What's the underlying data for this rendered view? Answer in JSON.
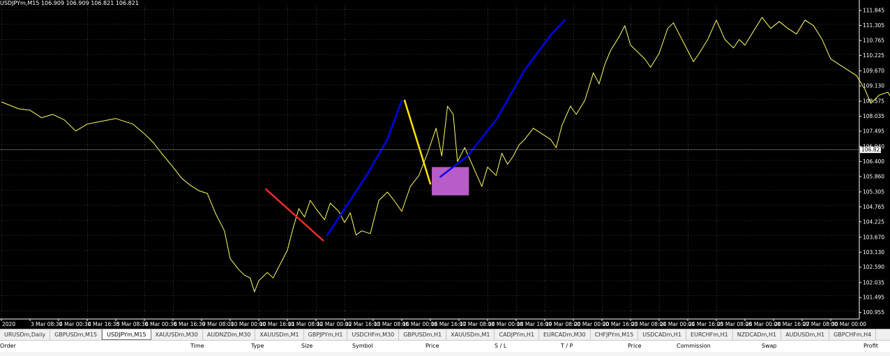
{
  "chart_data": {
    "type": "line",
    "title": "USDJPYm,M15  106.909 106.909 106.821 106.821",
    "symbol": "USDJPYm,M15",
    "ylim": [
      100.72,
      112.1
    ],
    "y_ticks": [
      111.845,
      111.305,
      110.765,
      110.225,
      109.67,
      109.13,
      108.575,
      108.035,
      107.495,
      106.94,
      106.4,
      105.86,
      105.305,
      104.765,
      104.225,
      103.67,
      103.13,
      102.59,
      102.035,
      101.495,
      100.955
    ],
    "current_price": 106.821,
    "x_ticks": [
      "2 Mar 2020",
      "3 Mar 08:30",
      "4 Mar 00:30",
      "4 Mar 16:30",
      "5 Mar 08:30",
      "6 Mar 00:30",
      "6 Mar 16:30",
      "9 Mar 08:00",
      "10 Mar 00:00",
      "10 Mar 16:00",
      "11 Mar 08:00",
      "12 Mar 00:00",
      "12 Mar 16:00",
      "13 Mar 08:00",
      "16 Mar 00:00",
      "16 Mar 16:00",
      "17 Mar 08:00",
      "18 Mar 00:00",
      "18 Mar 16:00",
      "19 Mar 08:00",
      "20 Mar 00:00",
      "20 Mar 16:00",
      "23 Mar 08:00",
      "24 Mar 00:00",
      "24 Mar 16:00",
      "25 Mar 08:00",
      "26 Mar 00:00",
      "26 Mar 16:00",
      "27 Mar 08:00",
      "30 Mar 00:00"
    ],
    "x_tick_display": [
      "2020",
      "3 Mar 08:30",
      "4 Mar 00:30",
      "4 Mar 16:30",
      "5 Mar 08:30",
      "6 Mar 00:30",
      "6 Mar 16:30",
      "9 Mar 08:00",
      "10 Mar 00:00",
      "10 Mar 16:00",
      "11 Mar 08:00",
      "12 Mar 00:00",
      "12 Mar 16:00",
      "13 Mar 08:00",
      "16 Mar 00:00",
      "16 Mar 16:00",
      "17 Mar 08:00",
      "18 Mar 00:00",
      "18 Mar 16:00",
      "19 Mar 08:00",
      "20 Mar 00:00",
      "20 Mar 16:00",
      "23 Mar 08:00",
      "24 Mar 00:00",
      "24 Mar 16:00",
      "25 Mar 08:00",
      "26 Mar 00:00",
      "26 Mar 16:00",
      "27 Mar 08:00",
      "30 Mar 00:00"
    ],
    "grid": true,
    "series": [
      {
        "color": "#ffff66",
        "points": [
          [
            0,
            108.55
          ],
          [
            0.6,
            108.3
          ],
          [
            1.0,
            108.25
          ],
          [
            1.4,
            107.98
          ],
          [
            1.8,
            108.1
          ],
          [
            2.2,
            107.9
          ],
          [
            2.6,
            107.5
          ],
          [
            3.0,
            107.75
          ],
          [
            3.5,
            107.85
          ],
          [
            4.0,
            107.95
          ],
          [
            4.6,
            107.75
          ],
          [
            5.0,
            107.4
          ],
          [
            5.3,
            107.1
          ],
          [
            5.6,
            106.7
          ],
          [
            6.0,
            106.2
          ],
          [
            6.3,
            105.8
          ],
          [
            6.6,
            105.55
          ],
          [
            6.9,
            105.35
          ],
          [
            7.2,
            105.25
          ],
          [
            7.5,
            104.5
          ],
          [
            7.8,
            103.9
          ],
          [
            8.0,
            102.9
          ],
          [
            8.3,
            102.5
          ],
          [
            8.5,
            102.3
          ],
          [
            8.7,
            102.2
          ],
          [
            8.85,
            101.7
          ],
          [
            9.0,
            102.1
          ],
          [
            9.3,
            102.4
          ],
          [
            9.5,
            102.2
          ],
          [
            9.8,
            102.8
          ],
          [
            10.0,
            103.2
          ],
          [
            10.2,
            104.0
          ],
          [
            10.4,
            104.7
          ],
          [
            10.6,
            104.4
          ],
          [
            10.8,
            105.0
          ],
          [
            11.0,
            104.7
          ],
          [
            11.3,
            104.3
          ],
          [
            11.5,
            104.9
          ],
          [
            11.8,
            104.6
          ],
          [
            12.0,
            104.2
          ],
          [
            12.2,
            104.55
          ],
          [
            12.4,
            103.75
          ],
          [
            12.6,
            103.9
          ],
          [
            12.9,
            103.8
          ],
          [
            13.0,
            104.2
          ],
          [
            13.2,
            105.0
          ],
          [
            13.5,
            105.3
          ],
          [
            13.8,
            104.9
          ],
          [
            14.0,
            104.6
          ],
          [
            14.3,
            105.5
          ],
          [
            14.6,
            105.9
          ],
          [
            14.9,
            106.7
          ],
          [
            15.1,
            107.3
          ],
          [
            15.2,
            107.6
          ],
          [
            15.4,
            106.6
          ],
          [
            15.6,
            108.4
          ],
          [
            15.8,
            108.1
          ],
          [
            15.95,
            106.4
          ],
          [
            16.2,
            106.9
          ],
          [
            16.5,
            106.2
          ],
          [
            16.8,
            105.5
          ],
          [
            17.0,
            106.2
          ],
          [
            17.3,
            105.9
          ],
          [
            17.5,
            106.7
          ],
          [
            17.7,
            106.3
          ],
          [
            17.9,
            106.6
          ],
          [
            18.1,
            107.0
          ],
          [
            18.3,
            107.2
          ],
          [
            18.6,
            107.6
          ],
          [
            18.9,
            107.4
          ],
          [
            19.2,
            107.2
          ],
          [
            19.4,
            106.9
          ],
          [
            19.6,
            107.7
          ],
          [
            19.9,
            108.4
          ],
          [
            20.1,
            108.1
          ],
          [
            20.4,
            108.6
          ],
          [
            20.7,
            109.6
          ],
          [
            20.9,
            109.2
          ],
          [
            21.1,
            109.9
          ],
          [
            21.3,
            110.4
          ],
          [
            21.6,
            110.9
          ],
          [
            21.8,
            111.3
          ],
          [
            22.0,
            110.6
          ],
          [
            22.3,
            110.3
          ],
          [
            22.5,
            110.1
          ],
          [
            22.7,
            109.8
          ],
          [
            23.0,
            110.3
          ],
          [
            23.3,
            111.2
          ],
          [
            23.5,
            111.4
          ],
          [
            23.8,
            110.8
          ],
          [
            24.0,
            110.4
          ],
          [
            24.2,
            110.0
          ],
          [
            24.4,
            110.3
          ],
          [
            24.7,
            110.8
          ],
          [
            25.0,
            111.5
          ],
          [
            25.3,
            110.8
          ],
          [
            25.6,
            110.5
          ],
          [
            25.8,
            110.8
          ],
          [
            26.0,
            110.6
          ],
          [
            26.3,
            111.1
          ],
          [
            26.6,
            111.6
          ],
          [
            26.9,
            111.2
          ],
          [
            27.2,
            111.45
          ],
          [
            27.5,
            111.2
          ],
          [
            27.8,
            111.0
          ],
          [
            28.1,
            111.5
          ],
          [
            28.4,
            111.3
          ],
          [
            28.7,
            110.8
          ],
          [
            29.0,
            110.1
          ],
          [
            29.3,
            109.9
          ],
          [
            29.6,
            109.7
          ],
          [
            29.9,
            109.5
          ],
          [
            30.2,
            109.0
          ],
          [
            30.4,
            108.5
          ],
          [
            30.7,
            108.8
          ],
          [
            31.0,
            108.9
          ],
          [
            31.3,
            108.4
          ],
          [
            31.6,
            108.0
          ],
          [
            31.9,
            107.8
          ],
          [
            32.2,
            107.4
          ],
          [
            32.4,
            107.2
          ]
        ]
      }
    ],
    "drawings": [
      {
        "type": "trendline",
        "color": "#ee2a2a",
        "points": [
          [
            9.25,
            105.4
          ],
          [
            11.25,
            103.55
          ]
        ]
      },
      {
        "type": "trendline",
        "color": "#0000ee",
        "points": [
          [
            11.4,
            103.75
          ],
          [
            12.8,
            105.95
          ],
          [
            13.5,
            107.2
          ],
          [
            14.0,
            108.6
          ]
        ]
      },
      {
        "type": "trendline",
        "color": "#ffe600",
        "points": [
          [
            14.1,
            108.6
          ],
          [
            15.0,
            105.6
          ]
        ]
      },
      {
        "type": "trendline",
        "color": "#0000ee",
        "points": [
          [
            15.35,
            105.85
          ],
          [
            16.3,
            106.6
          ],
          [
            17.3,
            107.9
          ],
          [
            18.3,
            109.7
          ],
          [
            19.2,
            110.95
          ],
          [
            19.7,
            111.5
          ]
        ]
      },
      {
        "type": "rectangle",
        "color": "#cc66dd",
        "x0": 15.05,
        "x1": 16.35,
        "y0": 105.18,
        "y1": 106.2
      }
    ]
  },
  "tabs": {
    "items": [
      "URUSDm,Daily",
      "GBPUSDm,M15",
      "USDJPYm,M15",
      "XAUUSDm,M30",
      "AUDNZDm,M30",
      "XAUUSDm,M1",
      "GBPJPYm,H1",
      "USDCHFm,M30",
      "GBPUSDm,H1",
      "XAUUSDm,M1",
      "CADJPYm,H1",
      "EURCADm,M30",
      "CHFJPYm,M15",
      "USDCADm,H1",
      "EURCHFm,H1",
      "NZDCADm,H1",
      "AUDUSDm,H1",
      "GBPCHFm,H4"
    ],
    "active_index": 2
  },
  "columns": [
    "Order",
    "Time",
    "Type",
    "Size",
    "Symbol",
    "Price",
    "S / L",
    "T / P",
    "Price",
    "Commission",
    "Swap",
    "Profit"
  ]
}
